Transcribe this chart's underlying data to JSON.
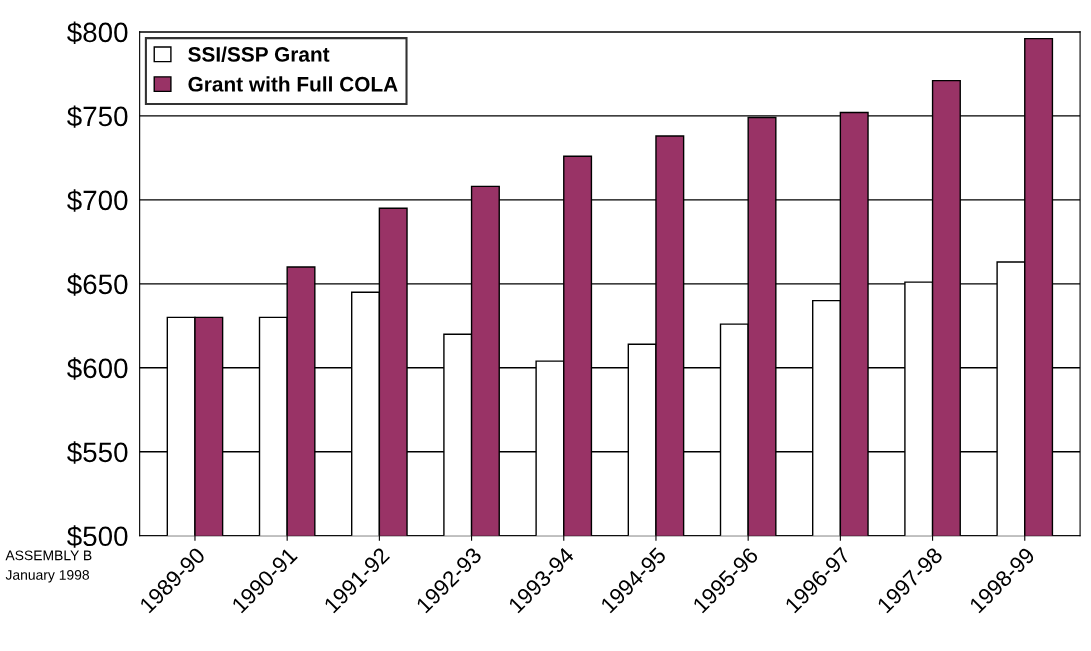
{
  "chart_data": {
    "type": "bar",
    "categories": [
      "1989-90",
      "1990-91",
      "1991-92",
      "1992-93",
      "1993-94",
      "1994-95",
      "1995-96",
      "1996-97",
      "1997-98",
      "1998-99"
    ],
    "series": [
      {
        "name": "SSI/SSP Grant",
        "color": "#ffffff",
        "values": [
          630,
          630,
          645,
          620,
          604,
          614,
          626,
          640,
          651,
          663
        ]
      },
      {
        "name": "Grant with Full COLA",
        "color": "#993366",
        "values": [
          630,
          660,
          695,
          708,
          726,
          738,
          749,
          752,
          771,
          796
        ]
      }
    ],
    "ylim": [
      500,
      800
    ],
    "yticks": [
      {
        "value": 500,
        "label": "$500"
      },
      {
        "value": 550,
        "label": "$550"
      },
      {
        "value": 600,
        "label": "$600"
      },
      {
        "value": 650,
        "label": "$650"
      },
      {
        "value": 700,
        "label": "$700"
      },
      {
        "value": 750,
        "label": "$750"
      },
      {
        "value": 800,
        "label": "$800"
      }
    ],
    "grid": "y",
    "legend": "top left",
    "annotations": [
      "ASSEMBLY B",
      "January 1998"
    ]
  }
}
